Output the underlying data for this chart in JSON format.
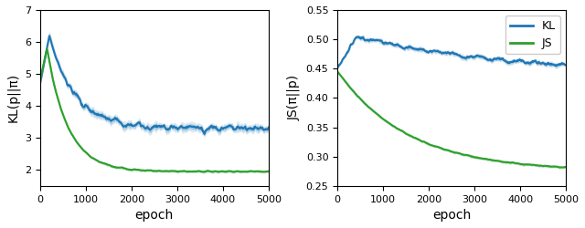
{
  "left_ylabel": "KL(p||π)",
  "right_ylabel": "JS(π||p)",
  "xlabel": "epoch",
  "xlim": [
    0,
    5000
  ],
  "left_ylim": [
    1.5,
    7.0
  ],
  "right_ylim": [
    0.25,
    0.55
  ],
  "left_yticks": [
    2,
    3,
    4,
    5,
    6,
    7
  ],
  "right_yticks": [
    0.25,
    0.3,
    0.35,
    0.4,
    0.45,
    0.5,
    0.55
  ],
  "xticks": [
    0,
    1000,
    2000,
    3000,
    4000,
    5000
  ],
  "kl_color": "#1f77b4",
  "js_color": "#2ca02c",
  "fill_alpha": 0.2,
  "legend_labels": [
    "KL",
    "JS"
  ],
  "n_points": 5000
}
